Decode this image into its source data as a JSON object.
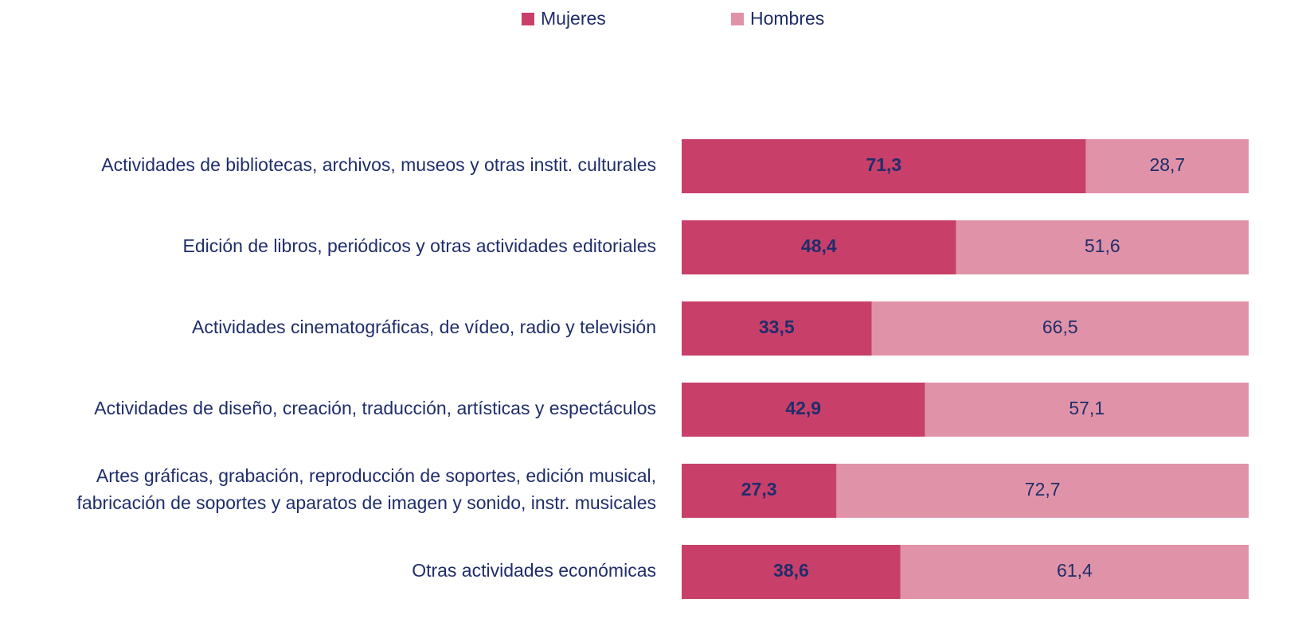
{
  "chart_data": {
    "type": "stacked_bar_horizontal",
    "categories": [
      "Actividades de bibliotecas, archivos, museos y otras instit. culturales",
      "Edición de libros, periódicos y otras actividades editoriales",
      "Actividades cinematográficas, de vídeo, radio y televisión",
      "Actividades de diseño, creación, traducción, artísticas y espectáculos",
      "Artes gráficas, grabación, reproducción de soportes, edición musical,\nfabricación de soportes y aparatos de imagen y sonido, instr. musicales",
      "Otras actividades económicas"
    ],
    "series": [
      {
        "name": "Mujeres",
        "color": "#c8406a",
        "values": [
          71.3,
          48.4,
          33.5,
          42.9,
          27.3,
          38.6
        ],
        "value_labels": [
          "71,3",
          "48,4",
          "33,5",
          "42,9",
          "27,3",
          "38,6"
        ]
      },
      {
        "name": "Hombres",
        "color": "#e093a8",
        "values": [
          28.7,
          51.6,
          66.5,
          57.1,
          72.7,
          61.4
        ],
        "value_labels": [
          "28,7",
          "51,6",
          "66,5",
          "57,1",
          "72,7",
          "61,4"
        ]
      }
    ],
    "xlim": [
      0,
      100
    ],
    "legend": "top"
  }
}
